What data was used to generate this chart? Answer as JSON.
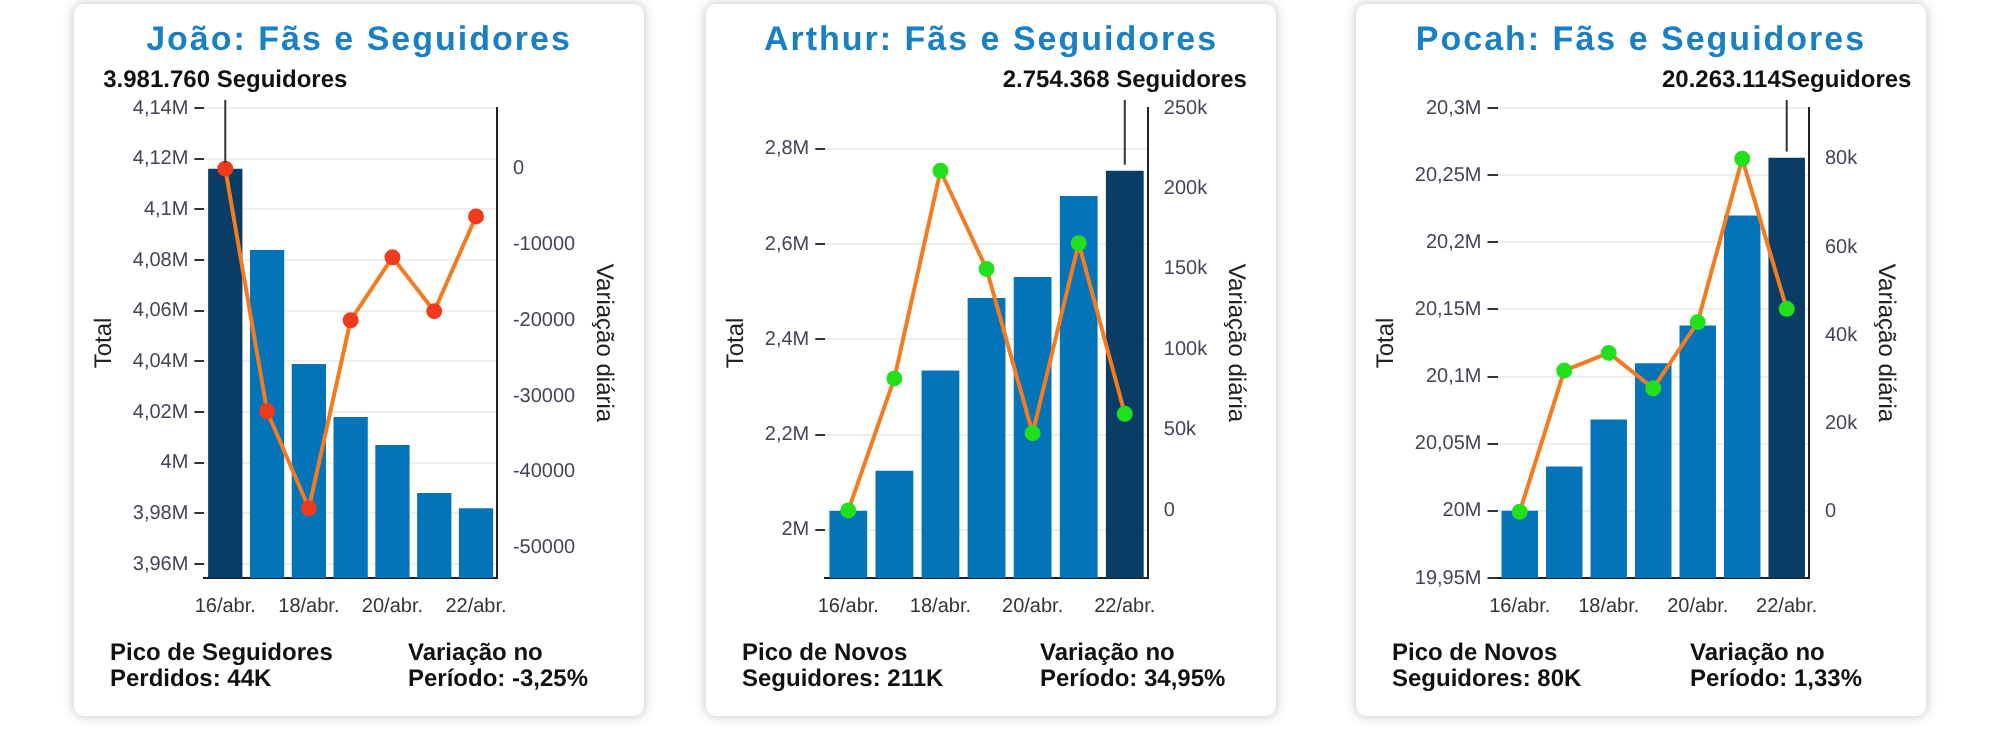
{
  "chart_data": [
    {
      "type": "bar",
      "title": "João: Fãs e Seguidores",
      "ylabel": "Total",
      "y2label": "Variação diária",
      "grid": "y",
      "marker": "circle",
      "categories": [
        "16/abr.",
        null,
        "18/abr.",
        null,
        "20/abr.",
        null,
        "22/abr."
      ],
      "series": [
        {
          "colors": [
            "#0a3d66",
            "#0474b8",
            "#0474b8",
            "#0474b8",
            "#0474b8",
            "#0474b8",
            "#0474b8"
          ],
          "values": [
            4116000,
            4084000,
            4039000,
            4018000,
            4007000,
            3988000,
            3982000
          ]
        },
        {
          "type": "line",
          "axis": "y2",
          "color": "#f47b20",
          "colors": [
            "#f03a1e",
            "#f03a1e",
            "#f03a1e",
            "#f03a1e",
            "#f03a1e",
            "#f03a1e",
            "#f03a1e"
          ],
          "values": [
            0,
            -32000,
            -44800,
            -20000,
            -11700,
            -18800,
            -6300
          ]
        }
      ],
      "ylim": [
        3954500,
        4140000
      ],
      "yticks": [
        {
          "value": 3960000,
          "label": "3,96M"
        },
        {
          "value": 3980000,
          "label": "3,98M"
        },
        {
          "value": 4000000,
          "label": "4M"
        },
        {
          "value": 4020000,
          "label": "4,02M"
        },
        {
          "value": 4040000,
          "label": "4,04M"
        },
        {
          "value": 4060000,
          "label": "4,06M"
        },
        {
          "value": 4080000,
          "label": "4,08M"
        },
        {
          "value": 4100000,
          "label": "4,1M"
        },
        {
          "value": 4120000,
          "label": "4,12M"
        },
        {
          "value": 4140000,
          "label": "4,14M"
        }
      ],
      "y2lim": [
        -54000,
        8000
      ],
      "y2ticks": [
        0,
        -10000,
        -20000,
        -30000,
        -40000,
        -50000
      ],
      "annotations": [
        {
          "text": "3.981.760 Seguidores",
          "x": "16/abr.",
          "y": 4116000
        },
        "Pico de Seguidores Perdidos: 44K",
        "Variação no Período: -3,25%"
      ]
    },
    {
      "type": "bar",
      "title": "Arthur: Fãs e Seguidores",
      "ylabel": "Total",
      "y2label": "Variação diária",
      "grid": "y",
      "marker": "circle",
      "categories": [
        "16/abr.",
        null,
        "18/abr.",
        null,
        "20/abr.",
        null,
        "22/abr."
      ],
      "series": [
        {
          "colors": [
            "#0474b8",
            "#0474b8",
            "#0474b8",
            "#0474b8",
            "#0474b8",
            "#0474b8",
            "#0a3d66"
          ],
          "values": [
            2040000,
            2124000,
            2335000,
            2487000,
            2531000,
            2701000,
            2754000
          ]
        },
        {
          "type": "line",
          "axis": "y2",
          "color": "#f47b20",
          "colors": [
            "#22e01c",
            "#22e01c",
            "#22e01c",
            "#22e01c",
            "#22e01c",
            "#22e01c",
            "#22e01c"
          ],
          "values": [
            0,
            82000,
            211000,
            150000,
            48000,
            166000,
            60000
          ]
        }
      ],
      "ylim": [
        1899000,
        2886000
      ],
      "yticks": [
        {
          "value": 2000000,
          "label": "2M"
        },
        {
          "value": 2200000,
          "label": "2,2M"
        },
        {
          "value": 2400000,
          "label": "2,4M"
        },
        {
          "value": 2600000,
          "label": "2,6M"
        },
        {
          "value": 2800000,
          "label": "2,8M"
        }
      ],
      "y2lim": [
        -42000,
        250000
      ],
      "y2ticks": [
        {
          "value": 0,
          "label": "0"
        },
        {
          "value": 50000,
          "label": "50k"
        },
        {
          "value": 100000,
          "label": "100k"
        },
        {
          "value": 150000,
          "label": "150k"
        },
        {
          "value": 200000,
          "label": "200k"
        },
        {
          "value": 250000,
          "label": "250k"
        }
      ],
      "annotations": [
        {
          "text": "2.754.368 Seguidores",
          "x": "22/abr.",
          "y": 2754368
        },
        "Pico de Novos Seguidores: 211K",
        "Variação no Período: 34,95%"
      ]
    },
    {
      "type": "bar",
      "title": "Pocah: Fãs e Seguidores",
      "ylabel": "Total",
      "y2label": "Variação diária",
      "grid": "y",
      "marker": "circle",
      "categories": [
        "16/abr.",
        null,
        "18/abr.",
        null,
        "20/abr.",
        null,
        "22/abr."
      ],
      "series": [
        {
          "colors": [
            "#0474b8",
            "#0474b8",
            "#0474b8",
            "#0474b8",
            "#0474b8",
            "#0474b8",
            "#0a3d66"
          ],
          "values": [
            20000000,
            20033000,
            20068000,
            20110000,
            20138000,
            20220000,
            20263000
          ]
        },
        {
          "type": "line",
          "axis": "y2",
          "color": "#f47b20",
          "colors": [
            "#22e01c",
            "#22e01c",
            "#22e01c",
            "#22e01c",
            "#22e01c",
            "#22e01c",
            "#22e01c"
          ],
          "values": [
            0,
            32000,
            36000,
            28000,
            43000,
            80000,
            46000
          ]
        }
      ],
      "ylim": [
        19950000,
        20300000
      ],
      "yticks": [
        {
          "value": 19950000,
          "label": "19,95M"
        },
        {
          "value": 20000000,
          "label": "20M"
        },
        {
          "value": 20050000,
          "label": "20,05M"
        },
        {
          "value": 20100000,
          "label": "20,1M"
        },
        {
          "value": 20150000,
          "label": "20,15M"
        },
        {
          "value": 20200000,
          "label": "20,2M"
        },
        {
          "value": 20250000,
          "label": "20,25M"
        },
        {
          "value": 20300000,
          "label": "20,3M"
        }
      ],
      "y2lim": [
        -15000,
        91500
      ],
      "y2ticks": [
        {
          "value": 0,
          "label": "0"
        },
        {
          "value": 20000,
          "label": "20k"
        },
        {
          "value": 40000,
          "label": "40k"
        },
        {
          "value": 60000,
          "label": "60k"
        },
        {
          "value": 80000,
          "label": "80k"
        }
      ],
      "annotations": [
        {
          "text": "20.263.114Seguidores",
          "x": "22/abr.",
          "y": 20263114
        },
        "Pico de Novos Seguidores: 80K",
        "Variação no Período: 1,33%"
      ]
    }
  ]
}
